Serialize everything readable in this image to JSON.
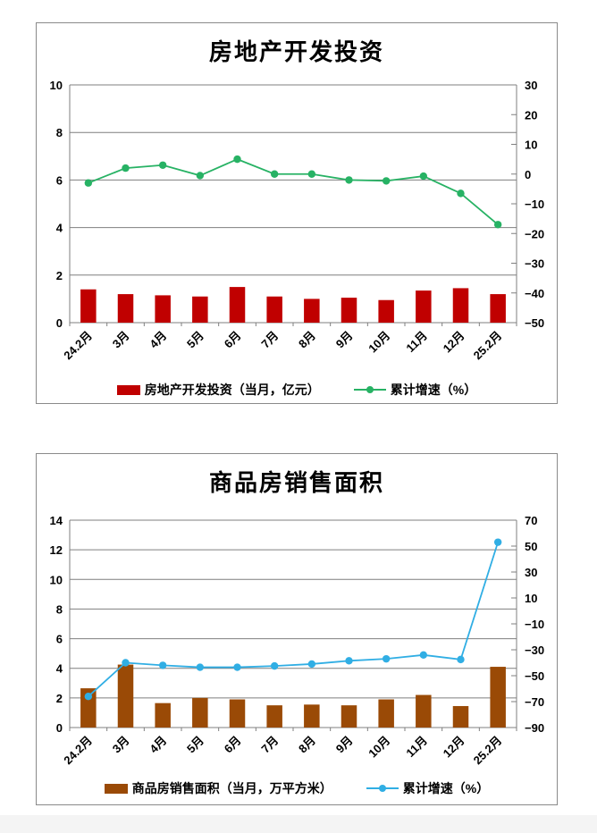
{
  "page": {
    "background": "#ffffff",
    "footer_strip_color": "#f4f4f4",
    "grid_color": "#7f7f7f",
    "panel_border_color": "#8a8a8a"
  },
  "chart_data": [
    {
      "id": "investment",
      "type": "bar+line",
      "title": "房地产开发投资",
      "categories": [
        "24.2月",
        "3月",
        "4月",
        "5月",
        "6月",
        "7月",
        "8月",
        "9月",
        "10月",
        "11月",
        "12月",
        "25.2月"
      ],
      "series": [
        {
          "name": "房地产开发投资（当月，亿元）",
          "type": "bar",
          "axis": "left",
          "color": "#C00000",
          "values": [
            1.4,
            1.2,
            1.15,
            1.1,
            1.5,
            1.1,
            1.0,
            1.05,
            0.95,
            1.35,
            1.45,
            1.2
          ]
        },
        {
          "name": "累计增速（%）",
          "type": "line",
          "axis": "right",
          "color": "#27B264",
          "values": [
            -3,
            2,
            3,
            -0.5,
            5,
            0,
            0,
            -2,
            -2.3,
            -0.7,
            -6.5,
            -17
          ]
        }
      ],
      "left_axis": {
        "min": 0,
        "max": 10,
        "step": 2
      },
      "right_axis": {
        "min": -50,
        "max": 30,
        "step": 10
      },
      "grid": "horizontal",
      "legend_position": "bottom"
    },
    {
      "id": "sales",
      "type": "bar+line",
      "title": "商品房销售面积",
      "categories": [
        "24.2月",
        "3月",
        "4月",
        "5月",
        "6月",
        "7月",
        "8月",
        "9月",
        "10月",
        "11月",
        "12月",
        "25.2月"
      ],
      "series": [
        {
          "name": "商品房销售面积（当月，万平方米）",
          "type": "bar",
          "axis": "left",
          "color": "#9A4A06",
          "values": [
            2.65,
            4.25,
            1.65,
            2.0,
            1.9,
            1.5,
            1.55,
            1.5,
            1.9,
            2.2,
            1.45,
            4.1
          ]
        },
        {
          "name": "累计增速（%）",
          "type": "line",
          "axis": "right",
          "color": "#30AEE4",
          "values": [
            -66,
            -40,
            -42,
            -43.5,
            -43.5,
            -42.5,
            -41,
            -38.5,
            -37,
            -34,
            -37.5,
            53
          ]
        }
      ],
      "left_axis": {
        "min": 0,
        "max": 14,
        "step": 2
      },
      "right_axis": {
        "min": -90,
        "max": 70,
        "step": 20
      },
      "grid": "horizontal",
      "legend_position": "bottom"
    }
  ]
}
